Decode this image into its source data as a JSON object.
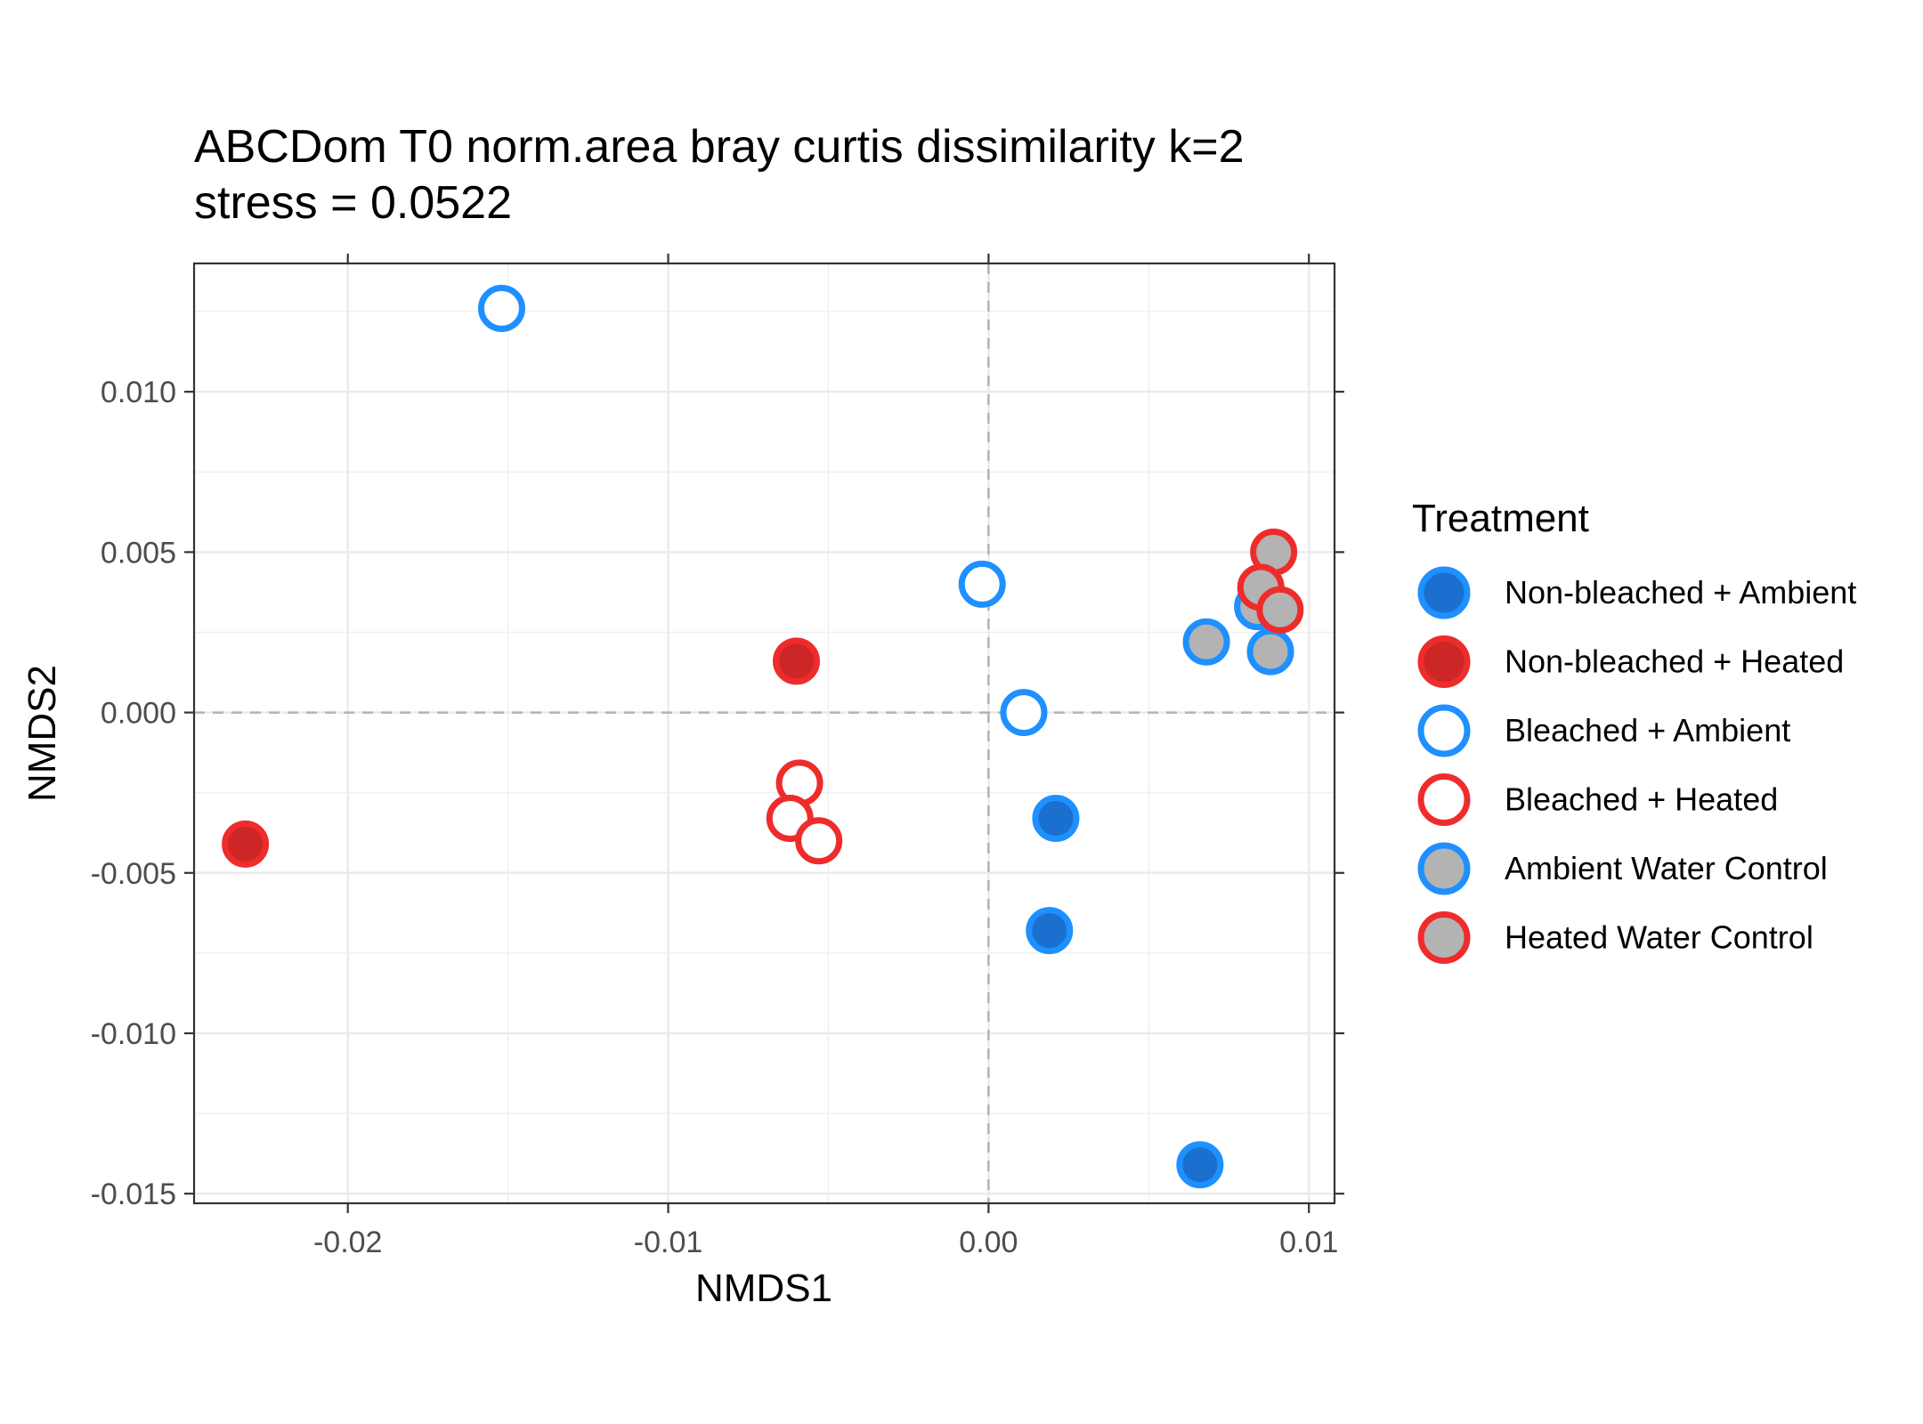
{
  "chart_data": {
    "type": "scatter",
    "title": "ABCDom T0 norm.area bray curtis dissimilarity k=2",
    "subtitle": "stress = 0.0522",
    "xlabel": "NMDS1",
    "ylabel": "NMDS2",
    "xlim": [
      -0.0248,
      0.0108
    ],
    "ylim": [
      -0.0153,
      0.014
    ],
    "x_ticks": [
      -0.02,
      -0.01,
      0.0,
      0.01
    ],
    "x_tick_labels": [
      "-0.02",
      "-0.01",
      "0.00",
      "0.01"
    ],
    "y_ticks": [
      -0.015,
      -0.01,
      -0.005,
      0.0,
      0.005,
      0.01
    ],
    "y_tick_labels": [
      "-0.015",
      "-0.010",
      "-0.005",
      "0.000",
      "0.005",
      "0.010"
    ],
    "grid": true,
    "reference_lines": {
      "x": 0,
      "y": 0,
      "style": "dashed"
    },
    "legend": {
      "title": "Treatment",
      "position": "right"
    },
    "series": [
      {
        "name": "Non-bleached + Ambient",
        "stroke": "#1e90ff",
        "fill": "#1a6fcf",
        "points": [
          {
            "x": 0.0021,
            "y": -0.0033
          },
          {
            "x": 0.0019,
            "y": -0.0068
          },
          {
            "x": 0.0066,
            "y": -0.0141
          }
        ]
      },
      {
        "name": "Non-bleached + Heated",
        "stroke": "#ee2c2c",
        "fill": "#cd2626",
        "points": [
          {
            "x": -0.006,
            "y": 0.0016
          },
          {
            "x": -0.0232,
            "y": -0.0041
          }
        ]
      },
      {
        "name": "Bleached + Ambient",
        "stroke": "#1e90ff",
        "fill": "#ffffff",
        "points": [
          {
            "x": -0.0152,
            "y": 0.0126
          },
          {
            "x": -0.0002,
            "y": 0.004
          },
          {
            "x": 0.0011,
            "y": 0.0
          }
        ]
      },
      {
        "name": "Bleached + Heated",
        "stroke": "#ee2c2c",
        "fill": "#ffffff",
        "points": [
          {
            "x": -0.0059,
            "y": -0.0022
          },
          {
            "x": -0.0062,
            "y": -0.0033
          },
          {
            "x": -0.0053,
            "y": -0.004
          }
        ]
      },
      {
        "name": "Ambient Water Control",
        "stroke": "#1e90ff",
        "fill": "#b3b3b3",
        "points": [
          {
            "x": 0.0068,
            "y": 0.0022
          },
          {
            "x": 0.0088,
            "y": 0.0019
          },
          {
            "x": 0.0084,
            "y": 0.0033
          }
        ]
      },
      {
        "name": "Heated Water Control",
        "stroke": "#ee2c2c",
        "fill": "#b3b3b3",
        "points": [
          {
            "x": 0.0089,
            "y": 0.005
          },
          {
            "x": 0.0085,
            "y": 0.0039
          },
          {
            "x": 0.0091,
            "y": 0.0032
          }
        ]
      }
    ]
  }
}
